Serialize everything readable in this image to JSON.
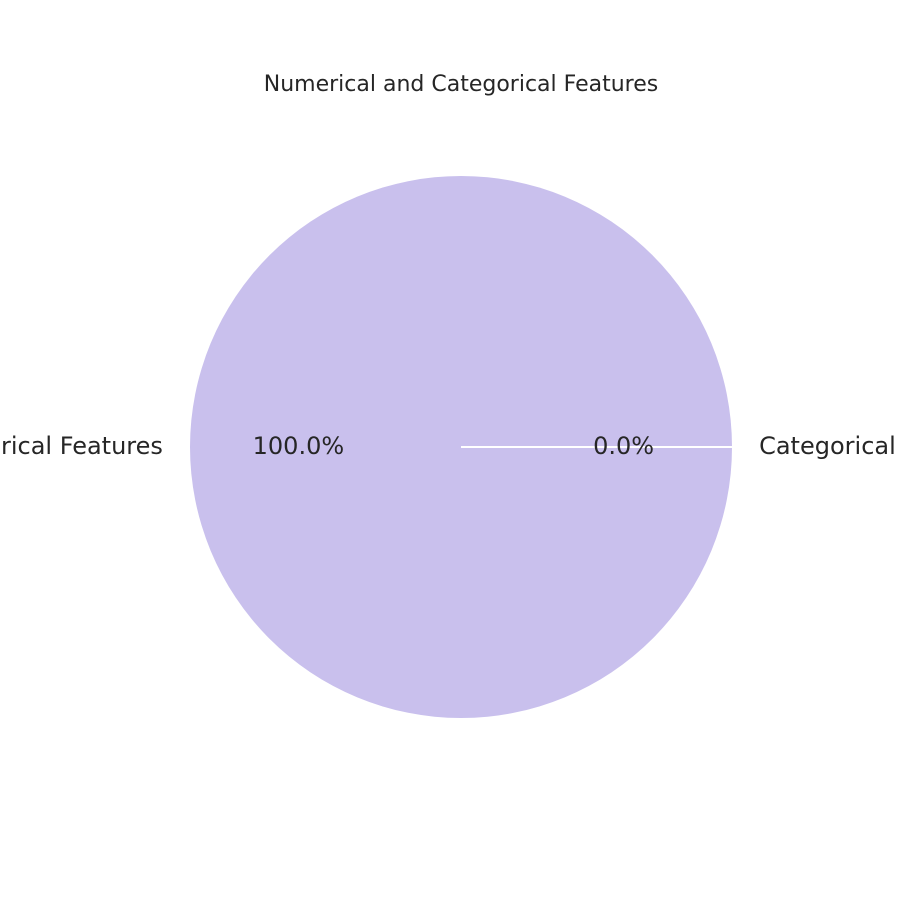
{
  "chart_data": {
    "type": "pie",
    "title": "Numerical and Categorical Features",
    "slices": [
      {
        "label": "Numerical Features",
        "value": 100.0,
        "pct_label": "100.0%",
        "color": "#c9c0ed"
      },
      {
        "label": "Categorical Features",
        "value": 0.0,
        "pct_label": "0.0%",
        "color": "#c9c0ed"
      }
    ],
    "start_angle_deg": 0,
    "direction": "counterclockwise",
    "edge_color": "#ffffff"
  }
}
